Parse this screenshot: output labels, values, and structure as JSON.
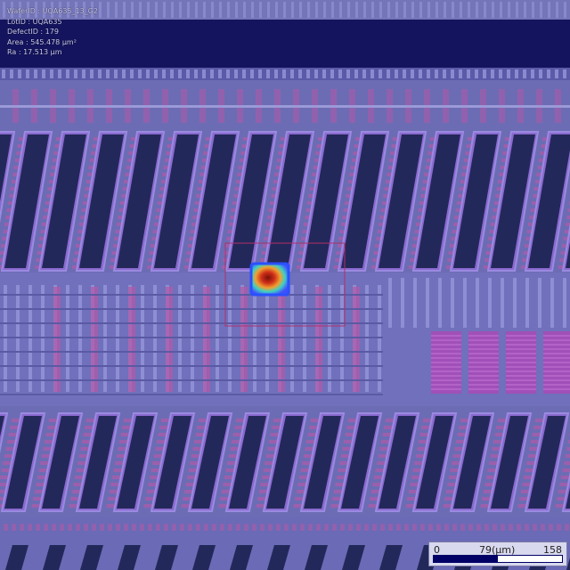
{
  "header": {
    "wafer_id": "WaferID : UQA635_13_G2",
    "lot_id": "LotID : UQA635",
    "defect_id": "DefectID : 179",
    "area": "Area : 545.478 µm²",
    "ra": "Ra : 17.513 µm"
  },
  "scale_bar": {
    "min_label": "0",
    "mid_label": "79(µm)",
    "max_label": "158",
    "filled_fraction": 0.5
  },
  "colors": {
    "background": "#6c6cb4",
    "header_band": "#14145e",
    "trench_dark": "#23285a",
    "magenta_metal": "#b05aa8",
    "defect_box": "#b0306a",
    "defect_hot": "#c8301c",
    "defect_border": "#2a50ff"
  }
}
